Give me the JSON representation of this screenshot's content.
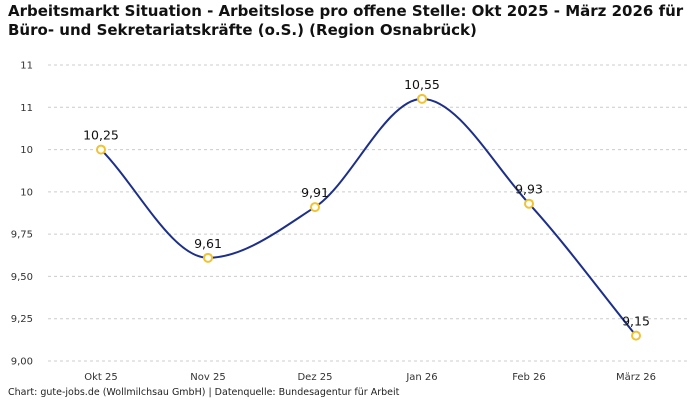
{
  "title_lines": [
    "Arbeitsmarkt Situation - Arbeitslose pro offene Stelle: Okt 2025 - März 2026 für",
    "Büro- und Sekretariatskräfte (o.S.) (Region Osnabrück)"
  ],
  "footer": "Chart: gute-jobs.de (Wollmilchsau GmbH) | Datenquelle: Bundesagentur für Arbeit",
  "colors": {
    "line": "#1c2f8a",
    "marker": "#f2c230",
    "grid": "#cccccc"
  },
  "chart_data": {
    "type": "line",
    "categories": [
      "Okt 25",
      "Nov 25",
      "Dez 25",
      "Jan 26",
      "Feb 26",
      "März 26"
    ],
    "values": [
      10.25,
      9.61,
      9.91,
      10.55,
      9.93,
      9.15
    ],
    "data_labels": [
      "10,25",
      "9,61",
      "9,91",
      "10,55",
      "9,93",
      "9,15"
    ],
    "ylim": [
      9.0,
      10.75
    ],
    "yticks": [
      9.0,
      9.25,
      9.5,
      9.75,
      10.0,
      10.25,
      10.5,
      10.75
    ],
    "ytick_labels": [
      "9,00",
      "9,25",
      "9,50",
      "9,75",
      "10",
      "10",
      "11",
      "11"
    ],
    "grid": true,
    "xlabel": "",
    "ylabel": ""
  }
}
